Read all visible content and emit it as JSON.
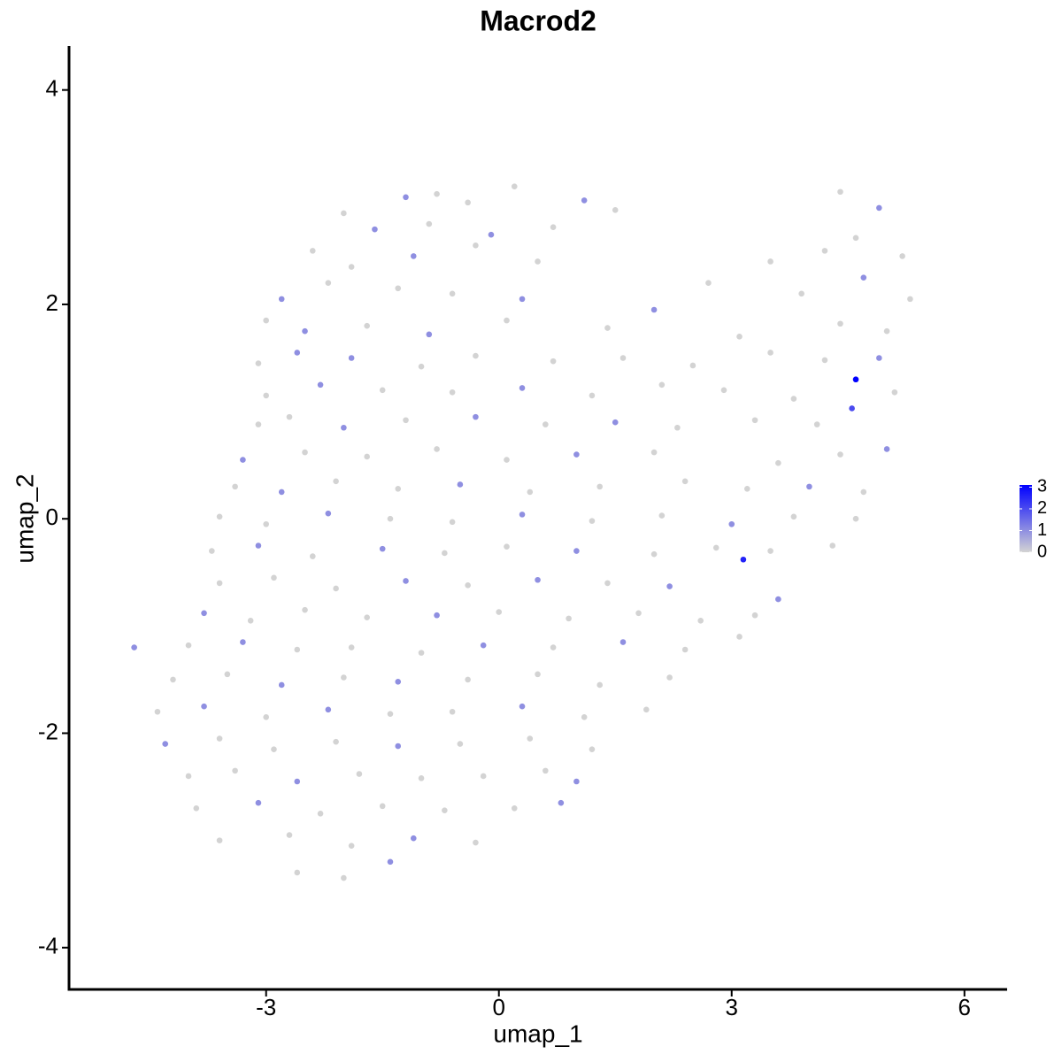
{
  "chart_data": {
    "type": "scatter",
    "title": "Macrod2",
    "x_label": "umap_1",
    "y_label": "umap_2",
    "xlim": [
      -5.54,
      6.55
    ],
    "ylim": [
      -4.39,
      4.41
    ],
    "xticks": [
      -3,
      0,
      3,
      6
    ],
    "yticks": [
      -4,
      -2,
      0,
      2,
      4
    ],
    "grid": false,
    "color_low": "#d3d3d3",
    "color_high": "#0000ff",
    "clim": [
      0,
      3.1
    ],
    "colorbar_ticks": [
      0,
      1,
      2,
      3
    ],
    "x": [
      -1.2,
      -0.8,
      -0.4,
      0.2,
      1.1,
      4.4,
      -2.0,
      -1.6,
      -0.9,
      -0.1,
      0.7,
      1.5,
      4.6,
      4.9,
      -2.4,
      -1.9,
      -1.1,
      -0.3,
      0.5,
      3.5,
      4.2,
      5.2,
      -2.8,
      -2.2,
      -1.3,
      -0.6,
      0.3,
      2.7,
      3.9,
      4.7,
      5.3,
      -3.0,
      -2.5,
      -1.7,
      -0.9,
      0.1,
      1.4,
      2.0,
      3.1,
      4.4,
      5.0,
      -3.1,
      -2.6,
      -1.9,
      -1.0,
      -0.3,
      0.7,
      1.6,
      2.5,
      3.5,
      4.2,
      4.9,
      -3.0,
      -2.3,
      -1.5,
      -0.6,
      0.3,
      1.2,
      2.1,
      2.9,
      3.8,
      4.6,
      5.1,
      -3.1,
      -2.7,
      -2.0,
      -1.2,
      -0.3,
      0.6,
      1.5,
      2.3,
      3.3,
      4.1,
      4.55,
      -3.3,
      -2.5,
      -1.7,
      -0.8,
      0.1,
      1.0,
      2.0,
      3.6,
      4.4,
      5.0,
      -3.4,
      -2.8,
      -2.1,
      -1.3,
      -0.5,
      0.4,
      1.3,
      2.4,
      3.2,
      4.0,
      4.7,
      -3.6,
      -3.0,
      -2.2,
      -1.4,
      -0.6,
      0.3,
      1.2,
      2.1,
      3.0,
      3.8,
      4.6,
      -3.7,
      -3.1,
      -2.4,
      -1.5,
      -0.7,
      0.1,
      1.0,
      2.0,
      2.8,
      3.5,
      4.3,
      -3.6,
      -2.9,
      -2.1,
      -1.2,
      -0.4,
      0.5,
      1.4,
      2.2,
      3.15,
      3.6,
      -3.8,
      -3.2,
      -2.5,
      -1.7,
      -0.8,
      0.0,
      0.9,
      1.8,
      2.6,
      3.3,
      -4.7,
      -4.0,
      -3.3,
      -2.6,
      -1.9,
      -1.0,
      -0.2,
      0.7,
      1.6,
      2.4,
      3.1,
      -4.2,
      -3.5,
      -2.8,
      -2.0,
      -1.3,
      -0.4,
      0.5,
      1.3,
      2.2,
      -4.4,
      -3.8,
      -3.0,
      -2.2,
      -1.4,
      -0.6,
      0.3,
      1.1,
      1.9,
      -4.3,
      -3.6,
      -2.9,
      -2.1,
      -1.3,
      -0.5,
      0.4,
      1.2,
      -4.0,
      -3.4,
      -2.6,
      -1.8,
      -1.0,
      -0.2,
      0.6,
      1.0,
      -3.9,
      -3.1,
      -2.3,
      -1.5,
      -0.7,
      0.2,
      0.8,
      -3.6,
      -2.7,
      -1.9,
      -1.1,
      -0.3,
      -2.6,
      -2.0,
      -1.4
    ],
    "y": [
      3.0,
      3.03,
      2.95,
      3.1,
      2.97,
      3.05,
      2.85,
      2.7,
      2.75,
      2.65,
      2.72,
      2.88,
      2.62,
      2.9,
      2.5,
      2.35,
      2.45,
      2.55,
      2.4,
      2.4,
      2.5,
      2.45,
      2.05,
      2.2,
      2.15,
      2.1,
      2.05,
      2.2,
      2.1,
      2.25,
      2.05,
      1.85,
      1.75,
      1.8,
      1.72,
      1.85,
      1.78,
      1.95,
      1.7,
      1.82,
      1.75,
      1.45,
      1.55,
      1.5,
      1.42,
      1.52,
      1.47,
      1.5,
      1.43,
      1.55,
      1.48,
      1.5,
      1.15,
      1.25,
      1.2,
      1.18,
      1.22,
      1.15,
      1.25,
      1.2,
      1.12,
      1.3,
      1.18,
      0.88,
      0.95,
      0.85,
      0.92,
      0.95,
      0.88,
      0.9,
      0.85,
      0.92,
      0.88,
      1.03,
      0.55,
      0.62,
      0.58,
      0.65,
      0.55,
      0.6,
      0.62,
      0.52,
      0.6,
      0.65,
      0.3,
      0.25,
      0.35,
      0.28,
      0.32,
      0.25,
      0.3,
      0.35,
      0.28,
      0.3,
      0.25,
      0.02,
      -0.05,
      0.05,
      0,
      -0.03,
      0.04,
      -0.02,
      0.03,
      -0.05,
      0.02,
      0,
      -0.3,
      -0.25,
      -0.35,
      -0.28,
      -0.32,
      -0.26,
      -0.3,
      -0.33,
      -0.27,
      -0.3,
      -0.25,
      -0.6,
      -0.55,
      -0.65,
      -0.58,
      -0.62,
      -0.57,
      -0.6,
      -0.63,
      -0.38,
      -0.75,
      -0.88,
      -0.95,
      -0.85,
      -0.92,
      -0.9,
      -0.87,
      -0.93,
      -0.88,
      -0.95,
      -0.9,
      -1.2,
      -1.18,
      -1.15,
      -1.22,
      -1.2,
      -1.25,
      -1.18,
      -1.2,
      -1.15,
      -1.22,
      -1.1,
      -1.5,
      -1.45,
      -1.55,
      -1.48,
      -1.52,
      -1.5,
      -1.45,
      -1.55,
      -1.48,
      -1.8,
      -1.75,
      -1.85,
      -1.78,
      -1.82,
      -1.8,
      -1.75,
      -1.85,
      -1.78,
      -2.1,
      -2.05,
      -2.15,
      -2.08,
      -2.12,
      -2.1,
      -2.05,
      -2.15,
      -2.4,
      -2.35,
      -2.45,
      -2.38,
      -2.42,
      -2.4,
      -2.35,
      -2.45,
      -2.7,
      -2.65,
      -2.75,
      -2.68,
      -2.72,
      -2.7,
      -2.65,
      -3.0,
      -2.95,
      -3.05,
      -2.98,
      -3.02,
      -3.3,
      -3.35,
      -3.2
    ],
    "values": [
      1,
      0,
      0,
      0,
      1,
      0,
      0,
      1,
      0,
      1,
      0,
      0,
      0,
      1,
      0,
      0,
      1,
      0,
      0,
      0,
      0,
      0,
      1,
      0,
      0,
      0,
      1,
      0,
      0,
      1,
      0,
      0,
      1,
      0,
      1,
      0,
      0,
      1,
      0,
      0,
      0,
      0,
      1,
      1,
      0,
      0,
      0,
      0,
      0,
      0,
      0,
      1,
      0,
      1,
      0,
      0,
      1,
      0,
      0,
      0,
      0,
      3.1,
      0,
      0,
      0,
      1,
      0,
      1,
      0,
      1,
      0,
      0,
      0,
      2.0,
      1,
      0,
      0,
      0,
      0,
      1,
      0,
      0,
      0,
      1,
      0,
      1,
      0,
      0,
      1,
      0,
      0,
      0,
      0,
      1,
      0,
      0,
      0,
      1,
      0,
      0,
      1,
      0,
      0,
      1,
      0,
      0,
      0,
      1,
      0,
      1,
      0,
      0,
      1,
      0,
      0,
      0,
      0,
      0,
      0,
      0,
      1,
      0,
      1,
      0,
      1,
      2.6,
      1,
      1,
      0,
      0,
      0,
      1,
      0,
      0,
      0,
      0,
      0,
      1,
      0,
      1,
      0,
      0,
      0,
      1,
      0,
      1,
      0,
      0,
      0,
      0,
      1,
      0,
      1,
      0,
      0,
      0,
      0,
      0,
      1,
      0,
      1,
      0,
      0,
      1,
      0,
      0,
      1,
      0,
      0,
      0,
      1,
      0,
      0,
      0,
      0,
      0,
      1,
      0,
      0,
      0,
      0,
      1,
      0,
      1,
      0,
      0,
      0,
      0,
      1,
      0,
      0,
      0,
      1,
      0,
      0,
      0,
      1
    ]
  }
}
